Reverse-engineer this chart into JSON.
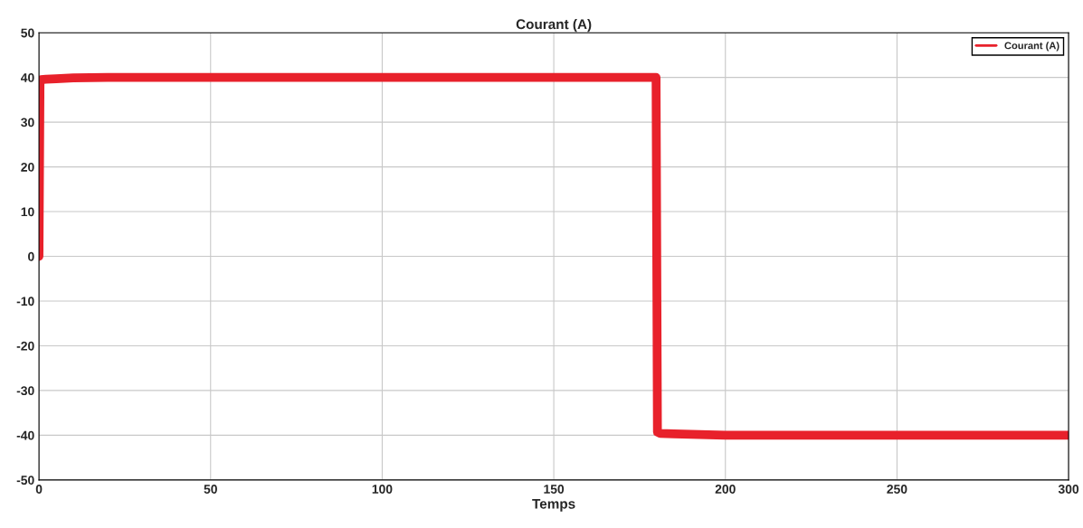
{
  "chart_data": {
    "type": "line",
    "title": "Courant (A)",
    "xlabel": "Temps",
    "x": [
      0,
      0.3,
      0.6,
      2,
      5,
      10,
      20,
      50,
      100,
      150,
      179.8,
      180.2,
      181,
      185,
      190,
      200,
      220,
      250,
      300
    ],
    "series": [
      {
        "name": "Courant (A)",
        "color": "#e8212b",
        "values": [
          0,
          39.3,
          39.5,
          39.6,
          39.7,
          39.9,
          40,
          40,
          40,
          40,
          40,
          -39.3,
          -39.6,
          -39.7,
          -39.8,
          -40,
          -40,
          -40,
          -40
        ]
      }
    ],
    "xlim": [
      0,
      300
    ],
    "xticks": [
      0,
      50,
      100,
      150,
      200,
      250,
      300
    ],
    "ylim": [
      -50,
      50
    ],
    "yticks": [
      -50,
      -40,
      -30,
      -20,
      -10,
      0,
      10,
      20,
      30,
      40,
      50
    ],
    "grid": true,
    "legend": "top right",
    "line_style": "solid",
    "marker": "none"
  }
}
